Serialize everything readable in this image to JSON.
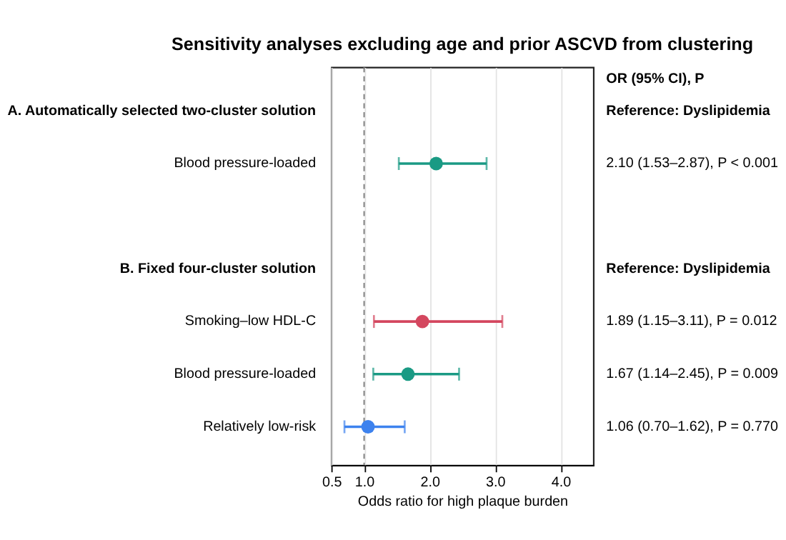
{
  "chart_data": {
    "type": "scatter",
    "orientation": "horizontal",
    "title": "Sensitivity analyses excluding age and prior ASCVD from clustering",
    "xlabel": "Odds ratio for high plaque burden",
    "categories": [
      "A. Automatically selected two-cluster solution",
      "Blood pressure-loaded",
      null,
      "B. Fixed four-cluster solution",
      "Smoking–low HDL-C",
      "Blood pressure-loaded",
      "Relatively low-risk"
    ],
    "values": [
      null,
      2.1,
      null,
      null,
      1.89,
      1.67,
      1.06
    ],
    "errors": [
      null,
      [
        1.53,
        2.87
      ],
      null,
      null,
      [
        1.15,
        3.11
      ],
      [
        1.14,
        2.45
      ],
      [
        0.7,
        1.62
      ]
    ],
    "colors": [
      null,
      "#1a9a84",
      null,
      null,
      "#d4475f",
      "#1a9a84",
      "#3d82ee"
    ],
    "value_labels": [
      "Reference: Dyslipidemia",
      "2.10 (1.53–2.87), P < 0.001",
      null,
      "Reference: Dyslipidemia",
      "1.89 (1.15–3.11), P = 0.012",
      "1.67 (1.14–2.45), P = 0.009",
      "1.06 (0.70–1.62), P = 0.770"
    ],
    "annotations": [
      "OR (95% CI), P"
    ],
    "xlim": [
      0.5,
      4.5
    ],
    "xticks": [
      0.5,
      {
        "value": 1,
        "label": "1.0"
      },
      {
        "value": 2,
        "label": "2.0"
      },
      {
        "value": 3,
        "label": "3.0"
      },
      {
        "value": 4,
        "label": "4.0"
      }
    ],
    "ref_lines": [
      {
        "axis": "x",
        "value": 1,
        "color": "#777777",
        "line_style": "dashed"
      }
    ],
    "grid": "x",
    "legend": false,
    "marker": "circle"
  }
}
